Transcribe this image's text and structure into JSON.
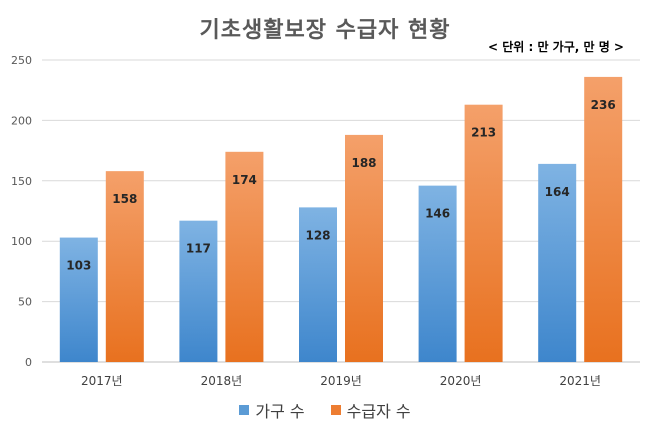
{
  "title": "기초생활보장 수급자 현황",
  "unit_note": "< 단위 : 만 가구, 만 명 >",
  "chart_data": {
    "type": "bar",
    "title": "기초생활보장 수급자 현황",
    "categories": [
      "2017년",
      "2018년",
      "2019년",
      "2020년",
      "2021년"
    ],
    "series": [
      {
        "name": "가구 수",
        "values": [
          103,
          117,
          128,
          146,
          164
        ],
        "color": "#5B9BD5"
      },
      {
        "name": "수급자 수",
        "values": [
          158,
          174,
          188,
          213,
          236
        ],
        "color": "#ED7D31"
      }
    ],
    "ylim": [
      0,
      250
    ],
    "yticks": [
      0,
      50,
      100,
      150,
      200,
      250
    ],
    "grid": true,
    "legend": "bottom"
  }
}
